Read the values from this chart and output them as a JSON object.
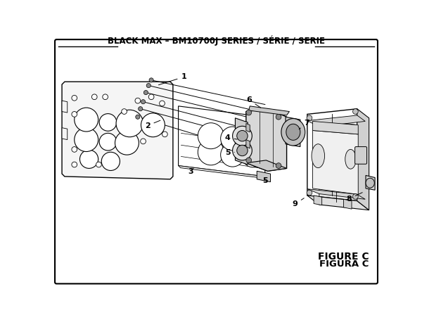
{
  "title": "BLACK MAX – BM10700J SERIES / SÉRIE / SERIE",
  "figure_label": "FIGURE C",
  "figure_label2": "FIGURA C",
  "bg_color": "#ffffff",
  "line_color": "#000000",
  "title_fontsize": 8.5,
  "label_fontsize": 8,
  "figure_label_fontsize": 10
}
